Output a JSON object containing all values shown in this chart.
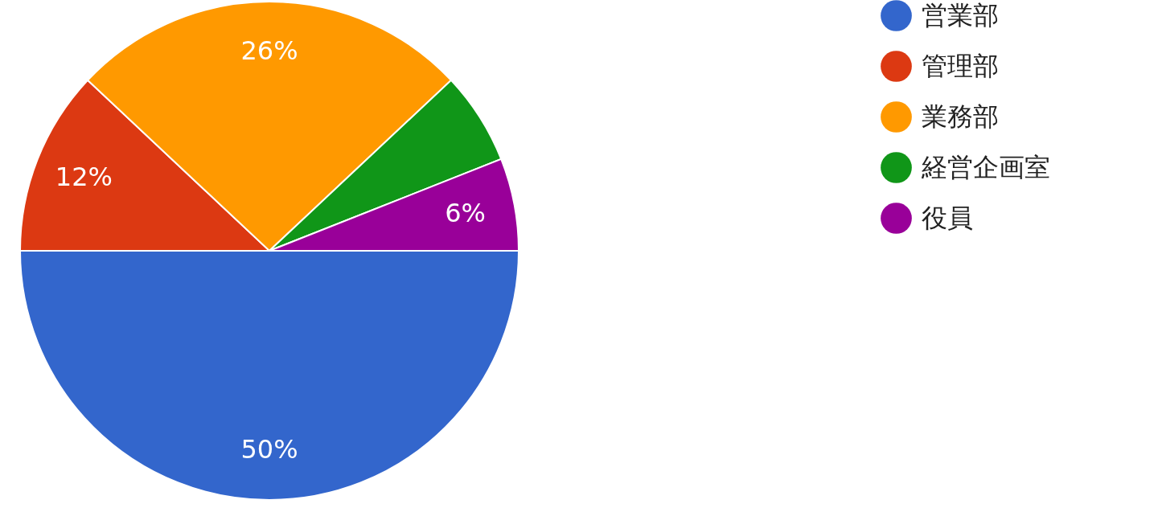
{
  "chart_data": {
    "type": "pie",
    "categories": [
      "営業部",
      "管理部",
      "業務部",
      "経営企画室",
      "役員"
    ],
    "values": [
      50,
      12,
      26,
      6,
      6
    ],
    "colors": [
      "#3366cc",
      "#dc3912",
      "#ff9900",
      "#109618",
      "#990099"
    ],
    "value_labels": [
      "50%",
      "12%",
      "26%",
      null,
      "6%"
    ],
    "legend": "top right"
  }
}
